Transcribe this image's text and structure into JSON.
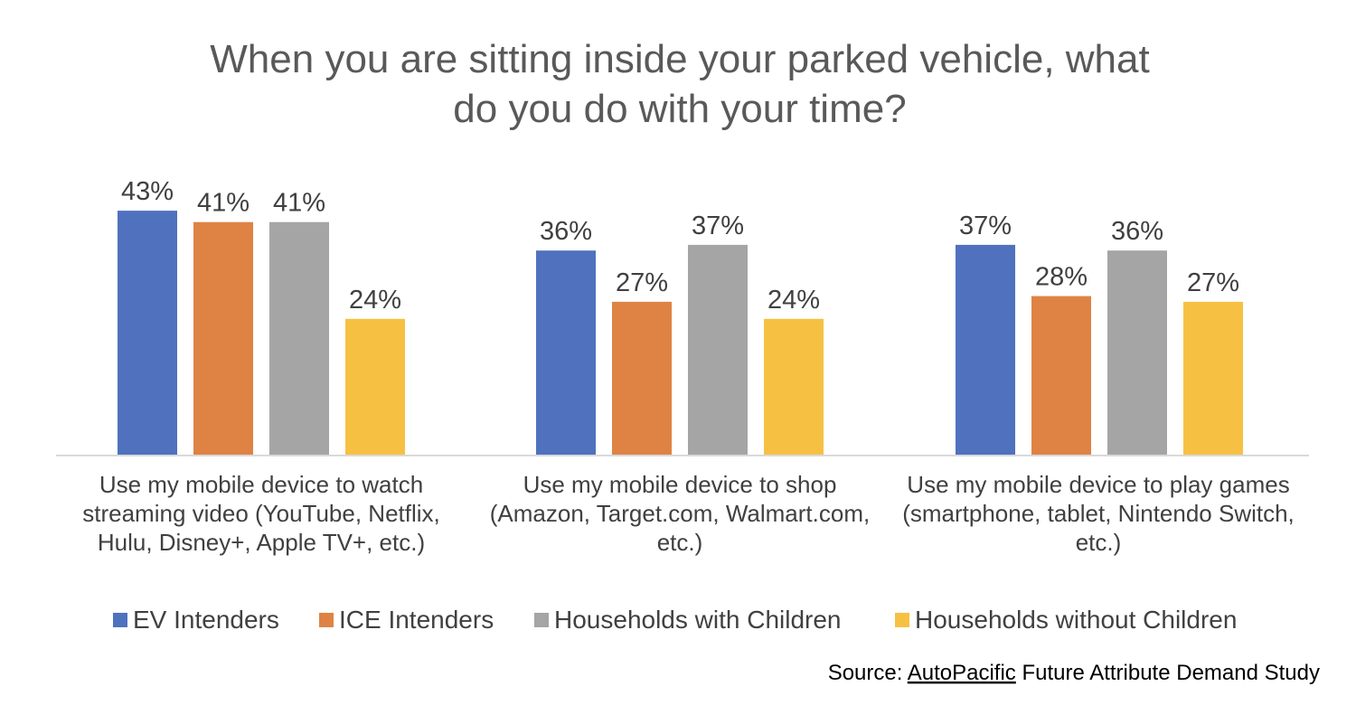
{
  "chart_data": {
    "type": "bar",
    "title": "When you are sitting inside your parked vehicle, what do you do with your time?",
    "title_lines": [
      "When you are sitting inside your parked vehicle, what",
      "do you do with your time?"
    ],
    "categories": [
      "Use my mobile device to watch streaming video (YouTube, Netflix, Hulu, Disney+, Apple TV+, etc.)",
      "Use my mobile device to shop (Amazon, Target.com, Walmart.com, etc.)",
      "Use my mobile device to play games (smartphone, tablet, Nintendo Switch, etc.)"
    ],
    "category_label_lines": [
      [
        "Use my mobile device to watch",
        "streaming video (YouTube, Netflix,",
        "Hulu, Disney+, Apple TV+, etc.)"
      ],
      [
        "Use my mobile device to shop",
        "(Amazon, Target.com, Walmart.com,",
        "etc.)"
      ],
      [
        "Use my mobile device to play games",
        "(smartphone, tablet, Nintendo Switch,",
        "etc.)"
      ]
    ],
    "series": [
      {
        "name": "EV Intenders",
        "color": "#4F71BE",
        "values": [
          43,
          36,
          37
        ]
      },
      {
        "name": "ICE Intenders",
        "color": "#DE8344",
        "values": [
          41,
          27,
          28
        ]
      },
      {
        "name": "Households with Children",
        "color": "#A5A5A5",
        "values": [
          41,
          37,
          36
        ]
      },
      {
        "name": "Households without Children",
        "color": "#F6C143",
        "values": [
          24,
          24,
          27
        ]
      }
    ],
    "value_format": "percent",
    "ylim": [
      0,
      50
    ],
    "xlabel": "",
    "ylabel": "",
    "grid": false,
    "legend_position": "bottom"
  },
  "source": {
    "prefix": "Source: ",
    "brand": "AutoPacific",
    "rest": " Future Attribute Demand Study"
  }
}
